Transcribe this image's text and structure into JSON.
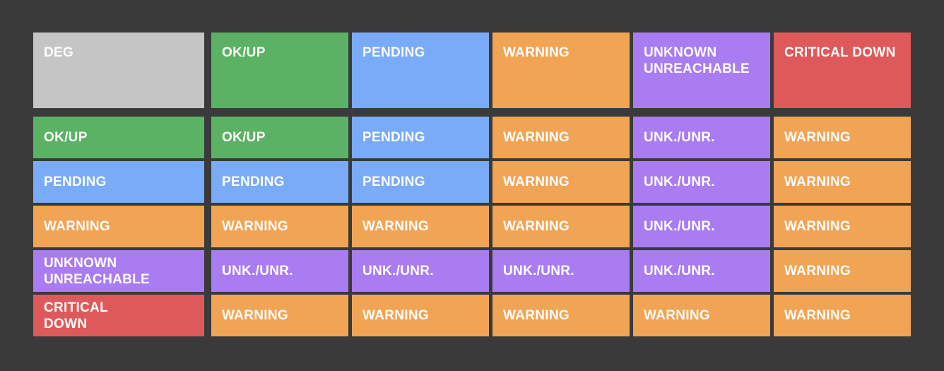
{
  "palette": {
    "background": "#3a3a3a",
    "text": "#ffffff",
    "neutral": "#c5c5c5",
    "ok": "#5bb264",
    "pending": "#79abf9",
    "warning": "#f2a455",
    "unknown": "#aa7cf2",
    "critical": "#de5a5a"
  },
  "matrix": {
    "corner": {
      "label": "DEG",
      "state": "neutral"
    },
    "column_headers": [
      {
        "label": "OK/UP",
        "state": "ok"
      },
      {
        "label": "PENDING",
        "state": "pending"
      },
      {
        "label": "WARNING",
        "state": "warning"
      },
      {
        "label": "UNKNOWN\nUNREACHABLE",
        "state": "unknown"
      },
      {
        "label": "CRITICAL DOWN",
        "state": "critical"
      }
    ],
    "rows": [
      {
        "header": {
          "label": "OK/UP",
          "state": "ok"
        },
        "cells": [
          {
            "label": "OK/UP",
            "state": "ok"
          },
          {
            "label": "PENDING",
            "state": "pending"
          },
          {
            "label": "WARNING",
            "state": "warning"
          },
          {
            "label": "UNK./UNR.",
            "state": "unknown"
          },
          {
            "label": "WARNING",
            "state": "warning"
          }
        ]
      },
      {
        "header": {
          "label": "PENDING",
          "state": "pending"
        },
        "cells": [
          {
            "label": "PENDING",
            "state": "pending"
          },
          {
            "label": "PENDING",
            "state": "pending"
          },
          {
            "label": "WARNING",
            "state": "warning"
          },
          {
            "label": "UNK./UNR.",
            "state": "unknown"
          },
          {
            "label": "WARNING",
            "state": "warning"
          }
        ]
      },
      {
        "header": {
          "label": "WARNING",
          "state": "warning"
        },
        "cells": [
          {
            "label": "WARNING",
            "state": "warning"
          },
          {
            "label": "WARNING",
            "state": "warning"
          },
          {
            "label": "WARNING",
            "state": "warning"
          },
          {
            "label": "UNK./UNR.",
            "state": "unknown"
          },
          {
            "label": "WARNING",
            "state": "warning"
          }
        ]
      },
      {
        "header": {
          "label": "UNKNOWN\nUNREACHABLE",
          "state": "unknown"
        },
        "cells": [
          {
            "label": "UNK./UNR.",
            "state": "unknown"
          },
          {
            "label": "UNK./UNR.",
            "state": "unknown"
          },
          {
            "label": "UNK./UNR.",
            "state": "unknown"
          },
          {
            "label": "UNK./UNR.",
            "state": "unknown"
          },
          {
            "label": "WARNING",
            "state": "warning"
          }
        ]
      },
      {
        "header": {
          "label": "CRITICAL\nDOWN",
          "state": "critical"
        },
        "cells": [
          {
            "label": "WARNING",
            "state": "warning"
          },
          {
            "label": "WARNING",
            "state": "warning"
          },
          {
            "label": "WARNING",
            "state": "warning"
          },
          {
            "label": "WARNING",
            "state": "warning"
          },
          {
            "label": "WARNING",
            "state": "warning"
          }
        ]
      }
    ]
  }
}
